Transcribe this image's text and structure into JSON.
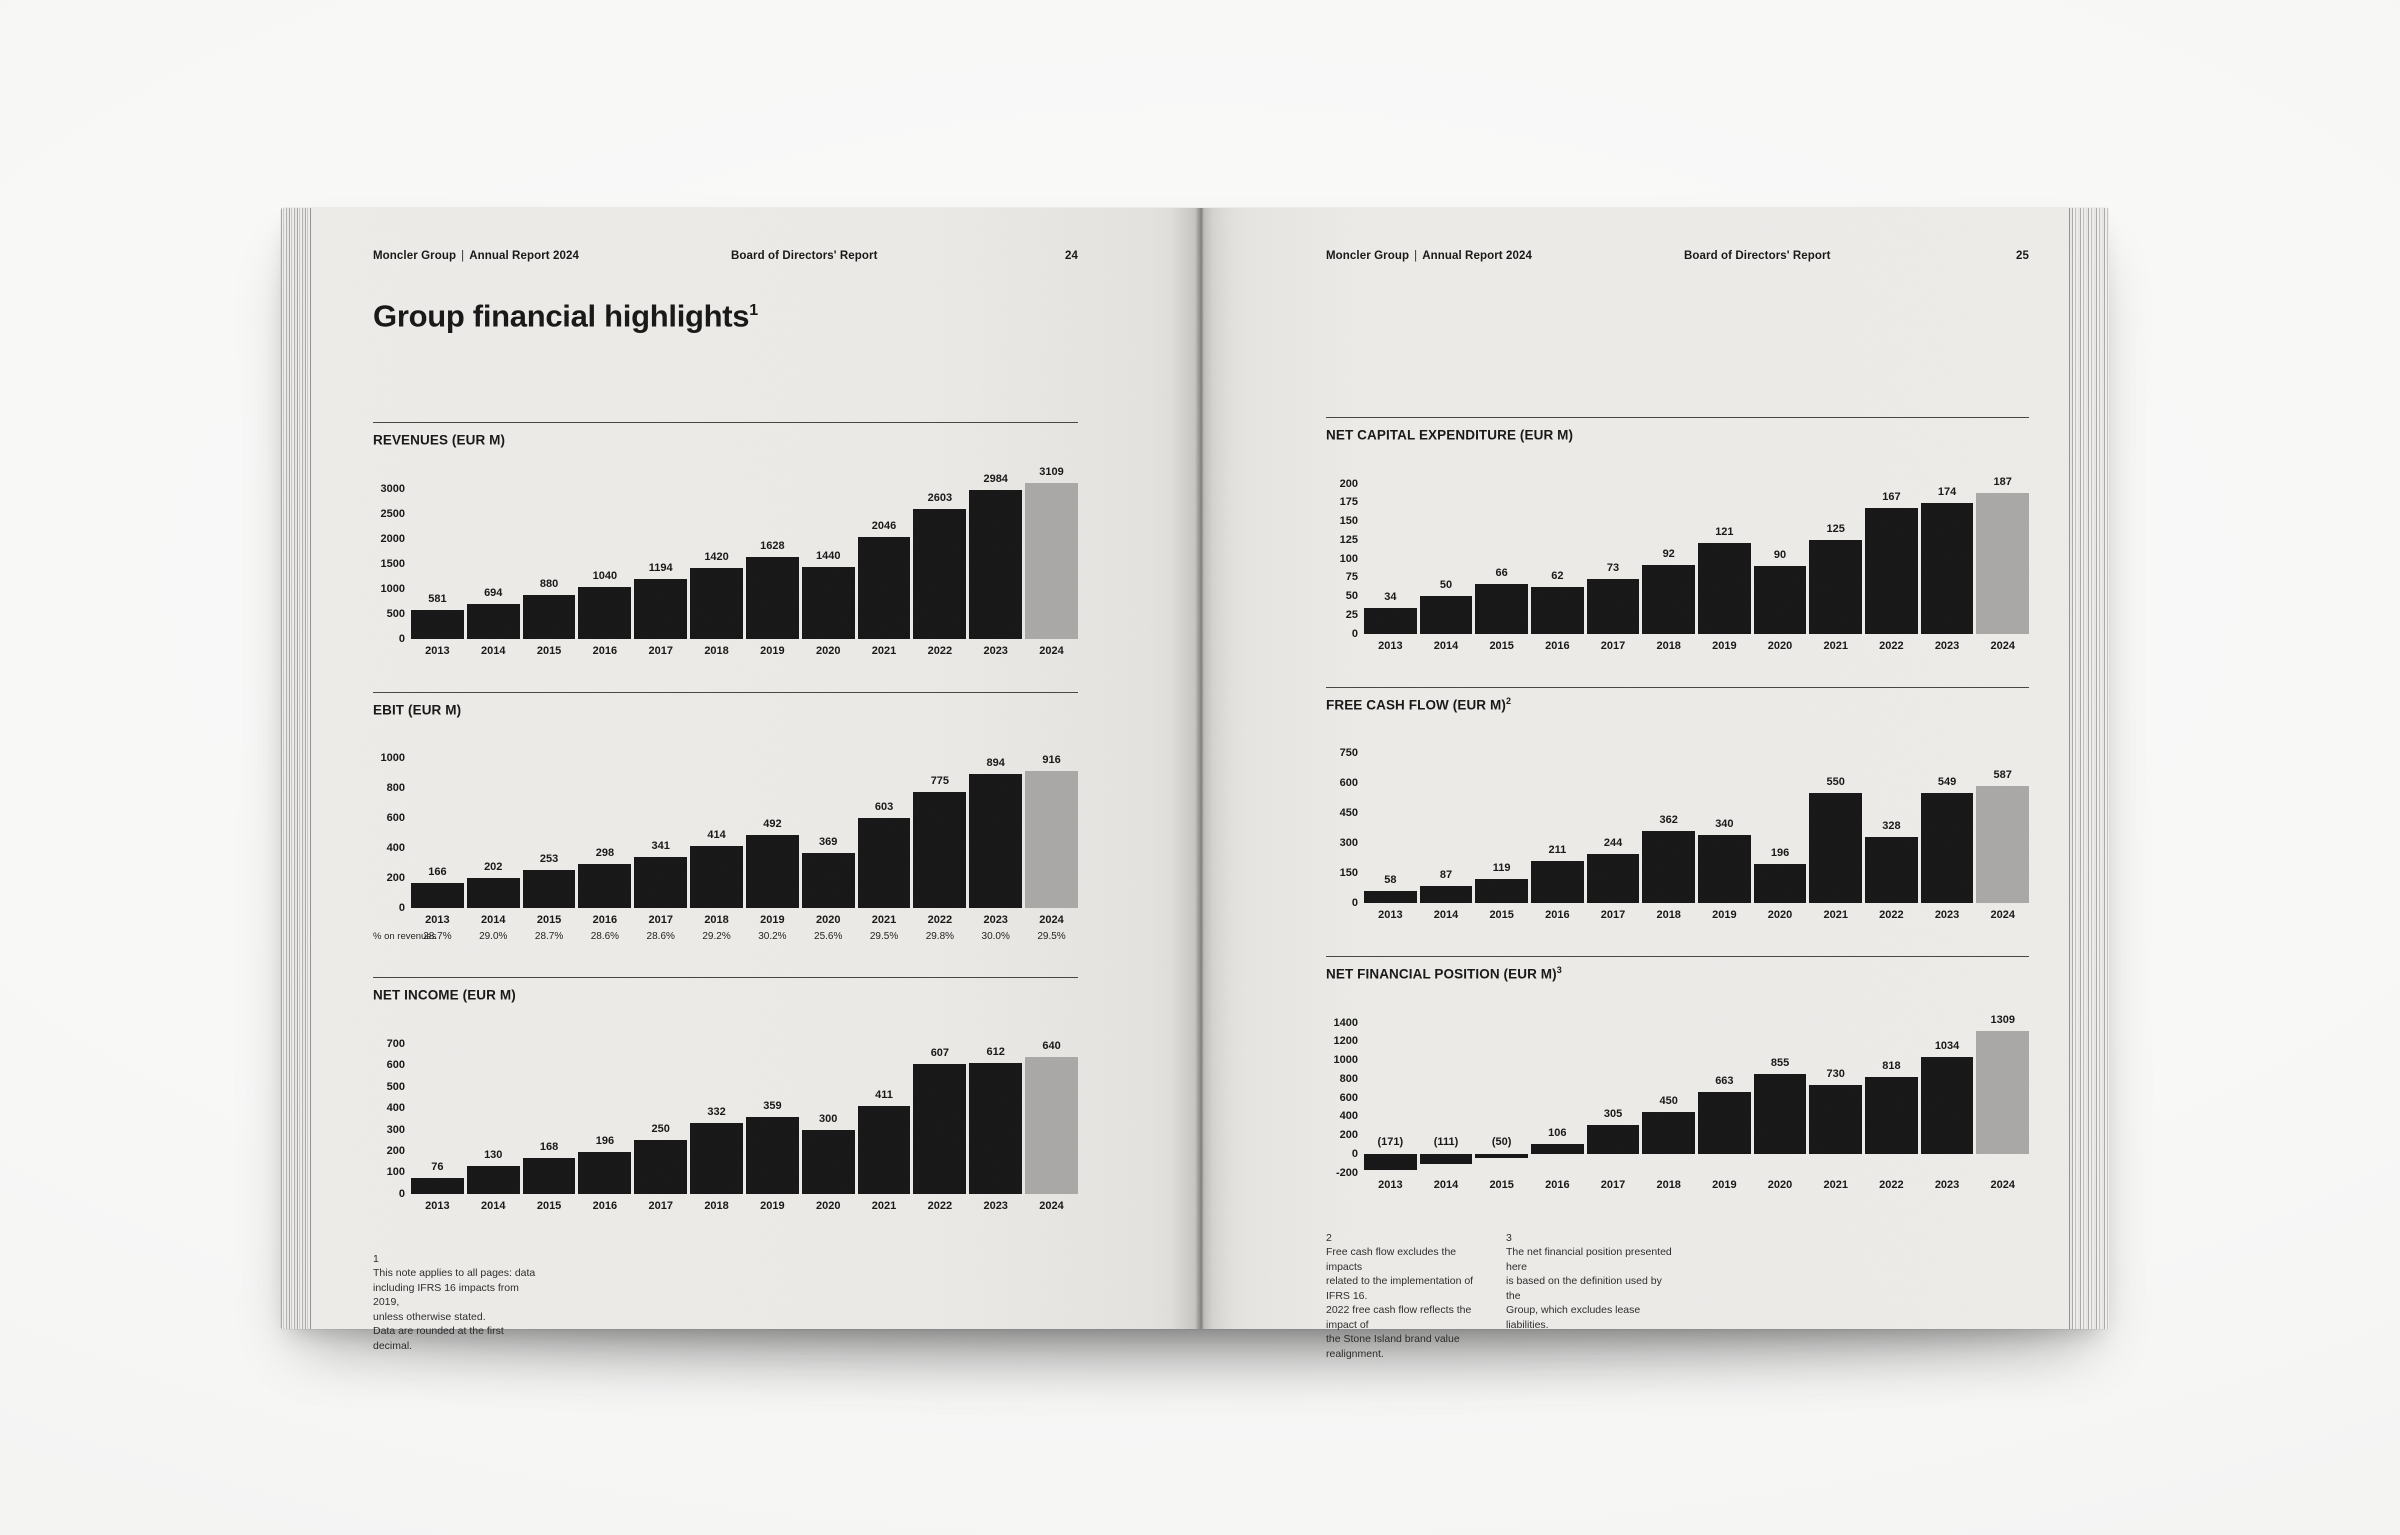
{
  "colors": {
    "bar": "#151515",
    "final_year_bar": "#a9a8a6",
    "paper": "#ecebe8",
    "background": "#f7f7f6",
    "ink": "#161616",
    "rule": "#454542"
  },
  "left_page": {
    "header": {
      "brand": "Moncler Group",
      "divider": "|",
      "report": "Annual Report 2024",
      "section": "Board of Directors' Report",
      "page_number": "24"
    },
    "title": {
      "text": "Group financial highlights",
      "sup": "1"
    },
    "footnotes": [
      {
        "number": "1",
        "text": "This note applies to all pages: data\nincluding IFRS 16 impacts from 2019,\nunless otherwise stated.\nData are rounded at the first decimal."
      }
    ]
  },
  "right_page": {
    "header": {
      "brand": "Moncler Group",
      "divider": "|",
      "report": "Annual Report 2024",
      "section": "Board of Directors' Report",
      "page_number": "25"
    },
    "footnotes": [
      {
        "number": "2",
        "text": "Free cash flow excludes the impacts\nrelated to the implementation of IFRS 16.\n2022 free cash flow reflects the impact of\nthe Stone Island brand value realignment."
      },
      {
        "number": "3",
        "text": "The net financial position presented here\nis based on the definition used by the\nGroup, which excludes lease liabilities."
      }
    ]
  },
  "chart_data": [
    {
      "type": "bar",
      "title": "REVENUES (EUR M)",
      "title_sup": "",
      "categories": [
        "2013",
        "2014",
        "2015",
        "2016",
        "2017",
        "2018",
        "2019",
        "2020",
        "2021",
        "2022",
        "2023",
        "2024"
      ],
      "values": [
        581,
        694,
        880,
        1040,
        1194,
        1420,
        1628,
        1440,
        2046,
        2603,
        2984,
        3109
      ],
      "value_labels": [
        "581",
        "694",
        "880",
        "1040",
        "1194",
        "1420",
        "1628",
        "1440",
        "2046",
        "2603",
        "2984",
        "3109"
      ],
      "yticks": [
        3000,
        2500,
        2000,
        1500,
        1000,
        500,
        0
      ],
      "ylim": [
        0,
        3000
      ],
      "grid": false,
      "final_bar_highlight": true,
      "extra_row": null
    },
    {
      "type": "bar",
      "title": "EBIT (EUR M)",
      "title_sup": "",
      "categories": [
        "2013",
        "2014",
        "2015",
        "2016",
        "2017",
        "2018",
        "2019",
        "2020",
        "2021",
        "2022",
        "2023",
        "2024"
      ],
      "values": [
        166,
        202,
        253,
        298,
        341,
        414,
        492,
        369,
        603,
        775,
        894,
        916
      ],
      "value_labels": [
        "166",
        "202",
        "253",
        "298",
        "341",
        "414",
        "492",
        "369",
        "603",
        "775",
        "894",
        "916"
      ],
      "yticks": [
        1000,
        800,
        600,
        400,
        200,
        0
      ],
      "ylim": [
        0,
        1000
      ],
      "grid": false,
      "final_bar_highlight": true,
      "extra_row": {
        "label": "% on revenues",
        "values": [
          "28.7%",
          "29.0%",
          "28.7%",
          "28.6%",
          "28.6%",
          "29.2%",
          "30.2%",
          "25.6%",
          "29.5%",
          "29.8%",
          "30.0%",
          "29.5%"
        ]
      }
    },
    {
      "type": "bar",
      "title": "NET INCOME (EUR M)",
      "title_sup": "",
      "categories": [
        "2013",
        "2014",
        "2015",
        "2016",
        "2017",
        "2018",
        "2019",
        "2020",
        "2021",
        "2022",
        "2023",
        "2024"
      ],
      "values": [
        76,
        130,
        168,
        196,
        250,
        332,
        359,
        300,
        411,
        607,
        612,
        640
      ],
      "value_labels": [
        "76",
        "130",
        "168",
        "196",
        "250",
        "332",
        "359",
        "300",
        "411",
        "607",
        "612",
        "640"
      ],
      "yticks": [
        700,
        600,
        500,
        400,
        300,
        200,
        100,
        0
      ],
      "ylim": [
        0,
        700
      ],
      "grid": false,
      "final_bar_highlight": true,
      "extra_row": null
    },
    {
      "type": "bar",
      "title": "NET CAPITAL EXPENDITURE (EUR M)",
      "title_sup": "",
      "categories": [
        "2013",
        "2014",
        "2015",
        "2016",
        "2017",
        "2018",
        "2019",
        "2020",
        "2021",
        "2022",
        "2023",
        "2024"
      ],
      "values": [
        34,
        50,
        66,
        62,
        73,
        92,
        121,
        90,
        125,
        167,
        174,
        187
      ],
      "value_labels": [
        "34",
        "50",
        "66",
        "62",
        "73",
        "92",
        "121",
        "90",
        "125",
        "167",
        "174",
        "187"
      ],
      "yticks": [
        200,
        175,
        150,
        125,
        100,
        75,
        50,
        25,
        0
      ],
      "ylim": [
        0,
        200
      ],
      "grid": false,
      "final_bar_highlight": true,
      "extra_row": null
    },
    {
      "type": "bar",
      "title": "FREE CASH FLOW (EUR M)",
      "title_sup": "2",
      "categories": [
        "2013",
        "2014",
        "2015",
        "2016",
        "2017",
        "2018",
        "2019",
        "2020",
        "2021",
        "2022",
        "2023",
        "2024"
      ],
      "values": [
        58,
        87,
        119,
        211,
        244,
        362,
        340,
        196,
        550,
        328,
        549,
        587
      ],
      "value_labels": [
        "58",
        "87",
        "119",
        "211",
        "244",
        "362",
        "340",
        "196",
        "550",
        "328",
        "549",
        "587"
      ],
      "yticks": [
        750,
        600,
        450,
        300,
        150,
        0
      ],
      "ylim": [
        0,
        750
      ],
      "grid": false,
      "final_bar_highlight": true,
      "extra_row": null
    },
    {
      "type": "bar",
      "title": "NET FINANCIAL POSITION (EUR M)",
      "title_sup": "3",
      "categories": [
        "2013",
        "2014",
        "2015",
        "2016",
        "2017",
        "2018",
        "2019",
        "2020",
        "2021",
        "2022",
        "2023",
        "2024"
      ],
      "values": [
        -171,
        -111,
        -50,
        106,
        305,
        450,
        663,
        855,
        730,
        818,
        1034,
        1309
      ],
      "value_labels": [
        "(171)",
        "(111)",
        "(50)",
        "106",
        "305",
        "450",
        "663",
        "855",
        "730",
        "818",
        "1034",
        "1309"
      ],
      "yticks": [
        1400,
        1200,
        1000,
        800,
        600,
        400,
        200,
        0,
        -200
      ],
      "ylim": [
        -200,
        1400
      ],
      "grid": false,
      "final_bar_highlight": true,
      "extra_row": null
    }
  ]
}
